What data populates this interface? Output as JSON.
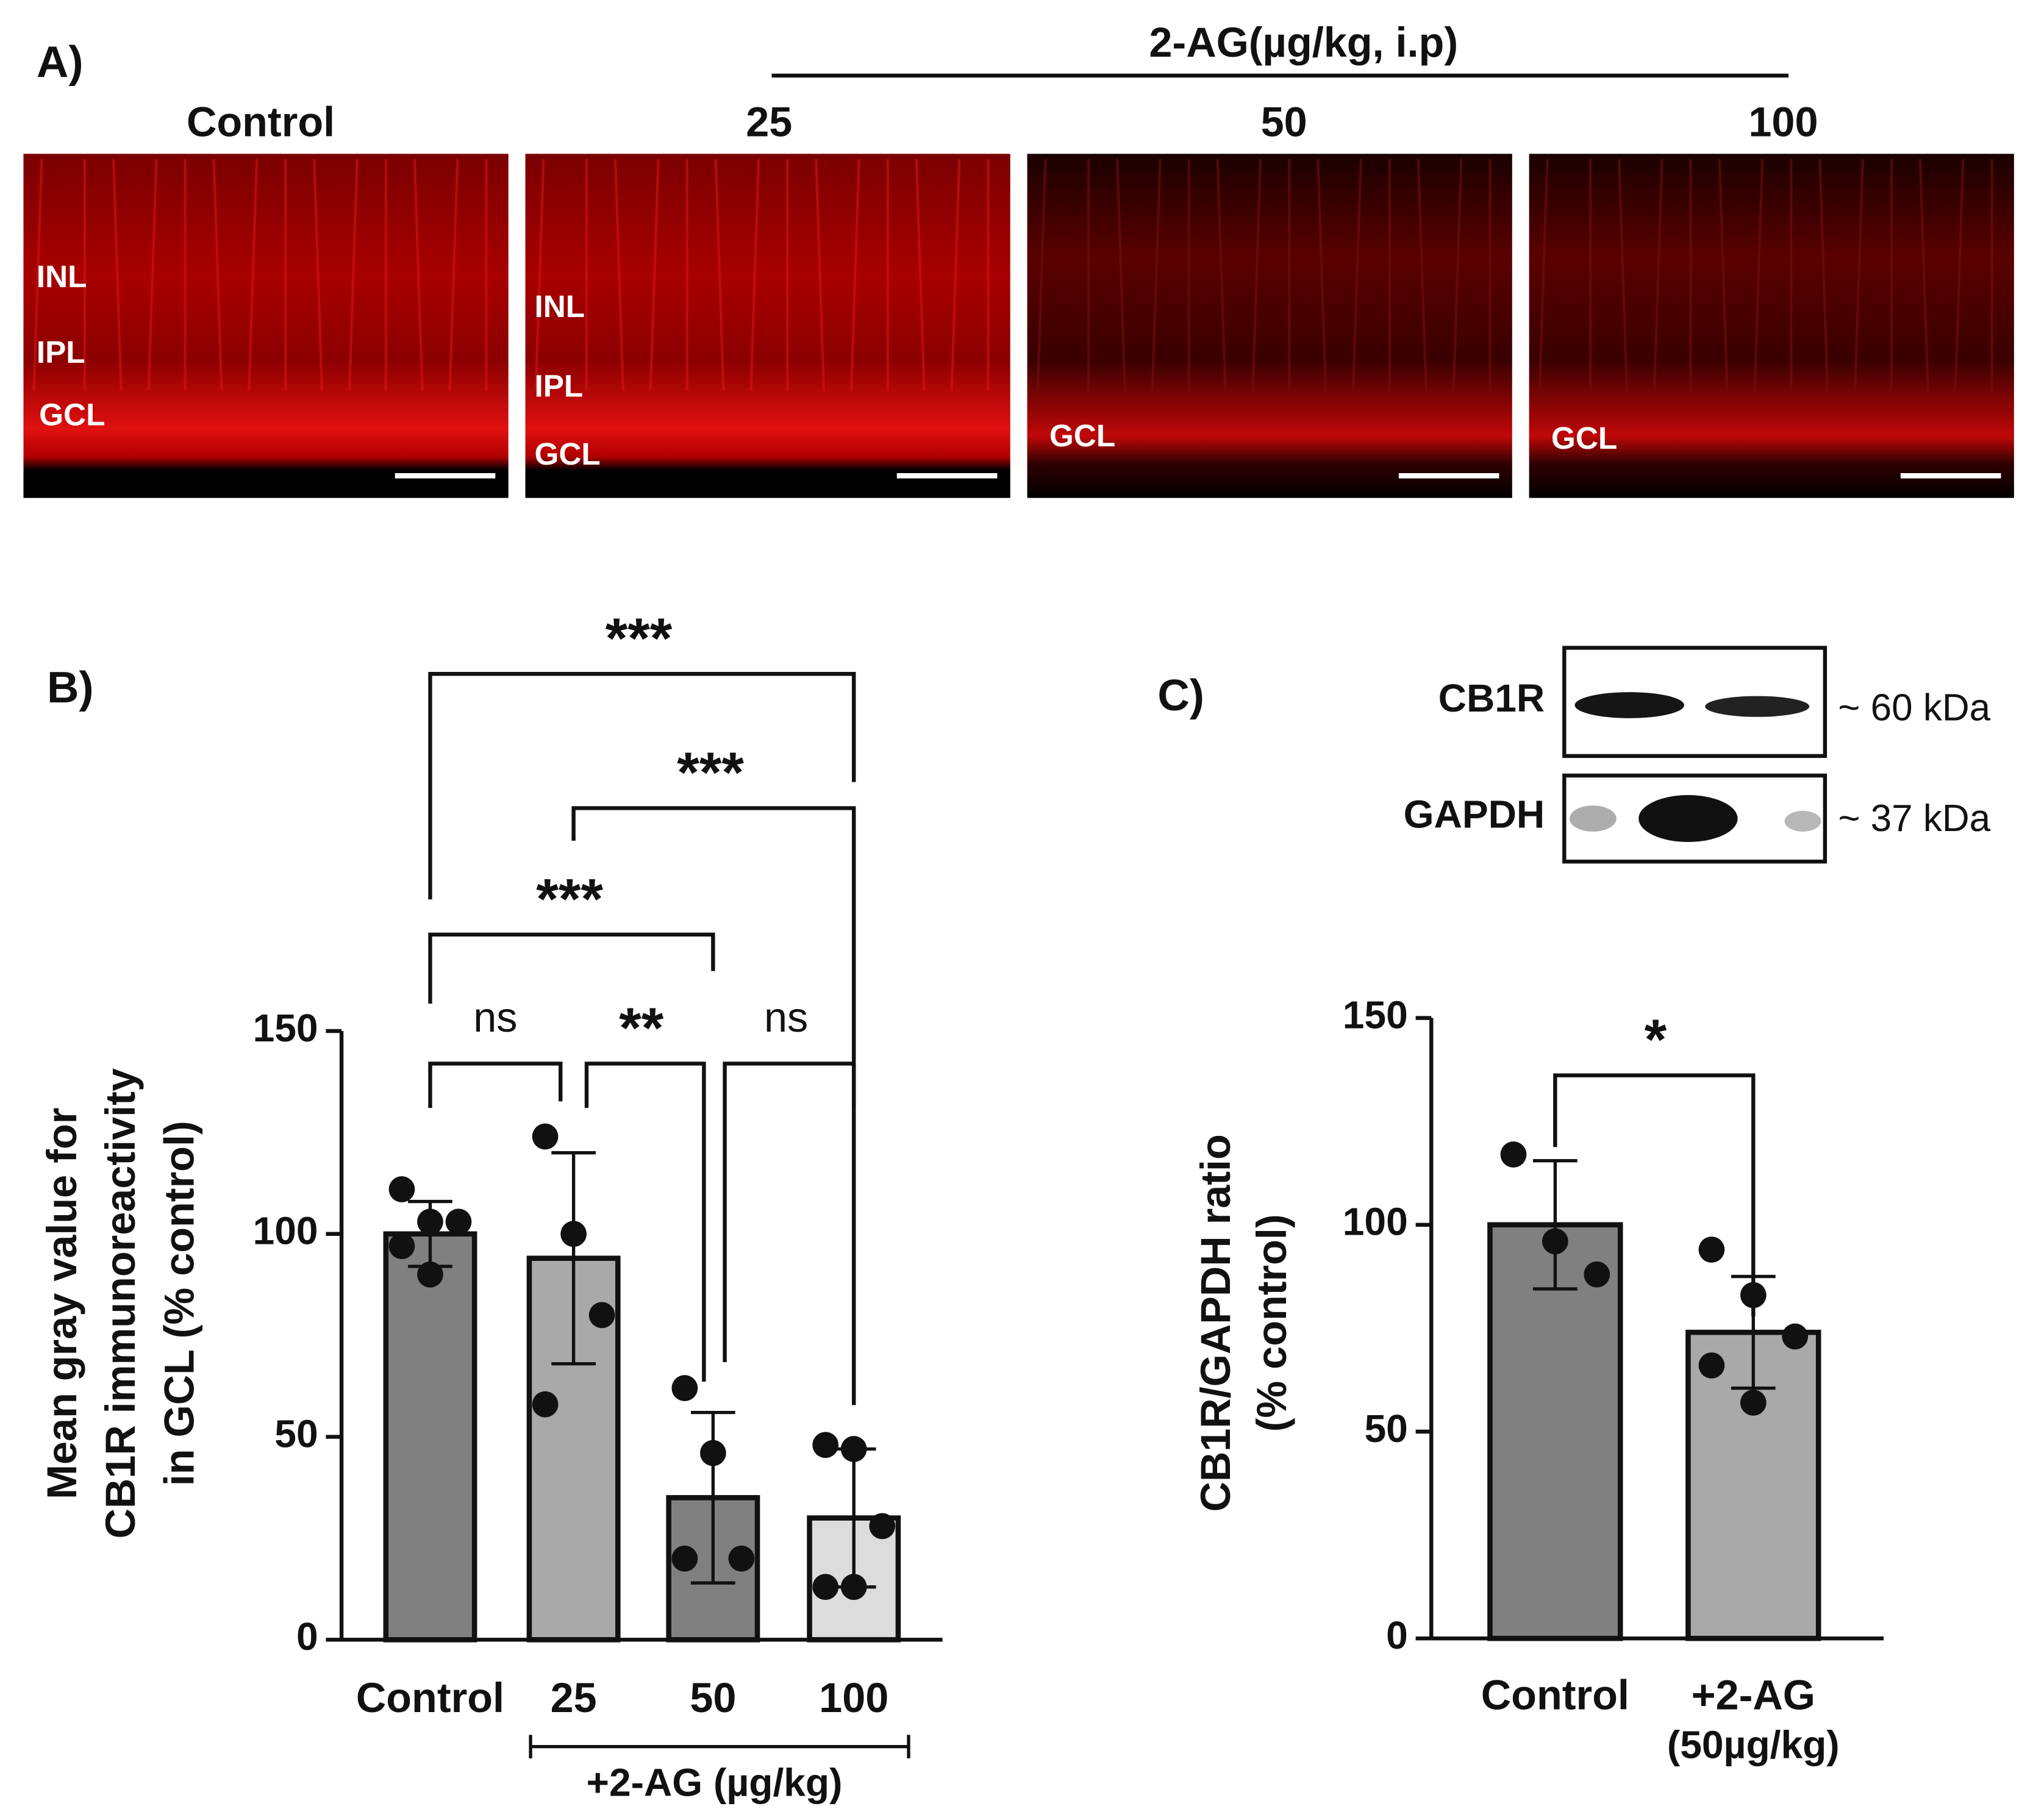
{
  "figure": {
    "panel_a": {
      "label": "A)",
      "treatment": "2-AG(µg/kg, i.p)",
      "columns": [
        "Control",
        "25",
        "50",
        "100"
      ],
      "layer_labels": [
        [
          "INL",
          "IPL",
          "GCL"
        ],
        [
          "INL",
          "IPL",
          "GCL"
        ],
        [
          "GCL"
        ],
        [
          "GCL"
        ]
      ]
    },
    "panel_b": {
      "label": "B)"
    },
    "panel_c": {
      "label": "C)",
      "blot": {
        "bands": [
          "CB1R",
          "GAPDH"
        ],
        "sizes": [
          "~ 60 kDa",
          "~ 37 kDa"
        ]
      }
    }
  },
  "chart_data": [
    {
      "type": "bar",
      "ylabel": [
        "Mean gray value for",
        "CB1R immunoreactivity",
        "in GCL (% control)"
      ],
      "categories": [
        "Control",
        "25",
        "50",
        "100"
      ],
      "group_label": "+2-AG (µg/kg)",
      "values": [
        100,
        94,
        35,
        30
      ],
      "errors": [
        8,
        26,
        21,
        17
      ],
      "points": [
        [
          111,
          103,
          103,
          97,
          90
        ],
        [
          124,
          100,
          80,
          58
        ],
        [
          62,
          46,
          20,
          20
        ],
        [
          48,
          47,
          28,
          13,
          13
        ]
      ],
      "colors": [
        "#808080",
        "#a9a9a9",
        "#808080",
        "#dcdcdc"
      ],
      "ylim": [
        0,
        150
      ],
      "yticks": [
        0,
        50,
        100,
        150
      ],
      "comparisons": [
        {
          "pair": [
            "Control",
            "25"
          ],
          "label": "ns"
        },
        {
          "pair": [
            "25",
            "50"
          ],
          "label": "**"
        },
        {
          "pair": [
            "50",
            "100"
          ],
          "label": "ns"
        },
        {
          "pair": [
            "Control",
            "50"
          ],
          "label": "***"
        },
        {
          "pair": [
            "25",
            "100"
          ],
          "label": "***"
        },
        {
          "pair": [
            "Control",
            "100"
          ],
          "label": "***"
        }
      ]
    },
    {
      "type": "bar",
      "ylabel": [
        "CB1R/GAPDH ratio",
        "(% control)"
      ],
      "categories": [
        "Control",
        "+2-AG"
      ],
      "category_notes": [
        null,
        "(50µg/kg)"
      ],
      "values": [
        100,
        74
      ],
      "errors": [
        15.5,
        13.5
      ],
      "points": [
        [
          117,
          96,
          88
        ],
        [
          94,
          83,
          73,
          66,
          57
        ]
      ],
      "colors": [
        "#808080",
        "#a9a9a9"
      ],
      "ylim": [
        0,
        150
      ],
      "yticks": [
        0,
        50,
        100,
        150
      ],
      "comparisons": [
        {
          "pair": [
            "Control",
            "+2-AG"
          ],
          "label": "*"
        }
      ]
    }
  ]
}
